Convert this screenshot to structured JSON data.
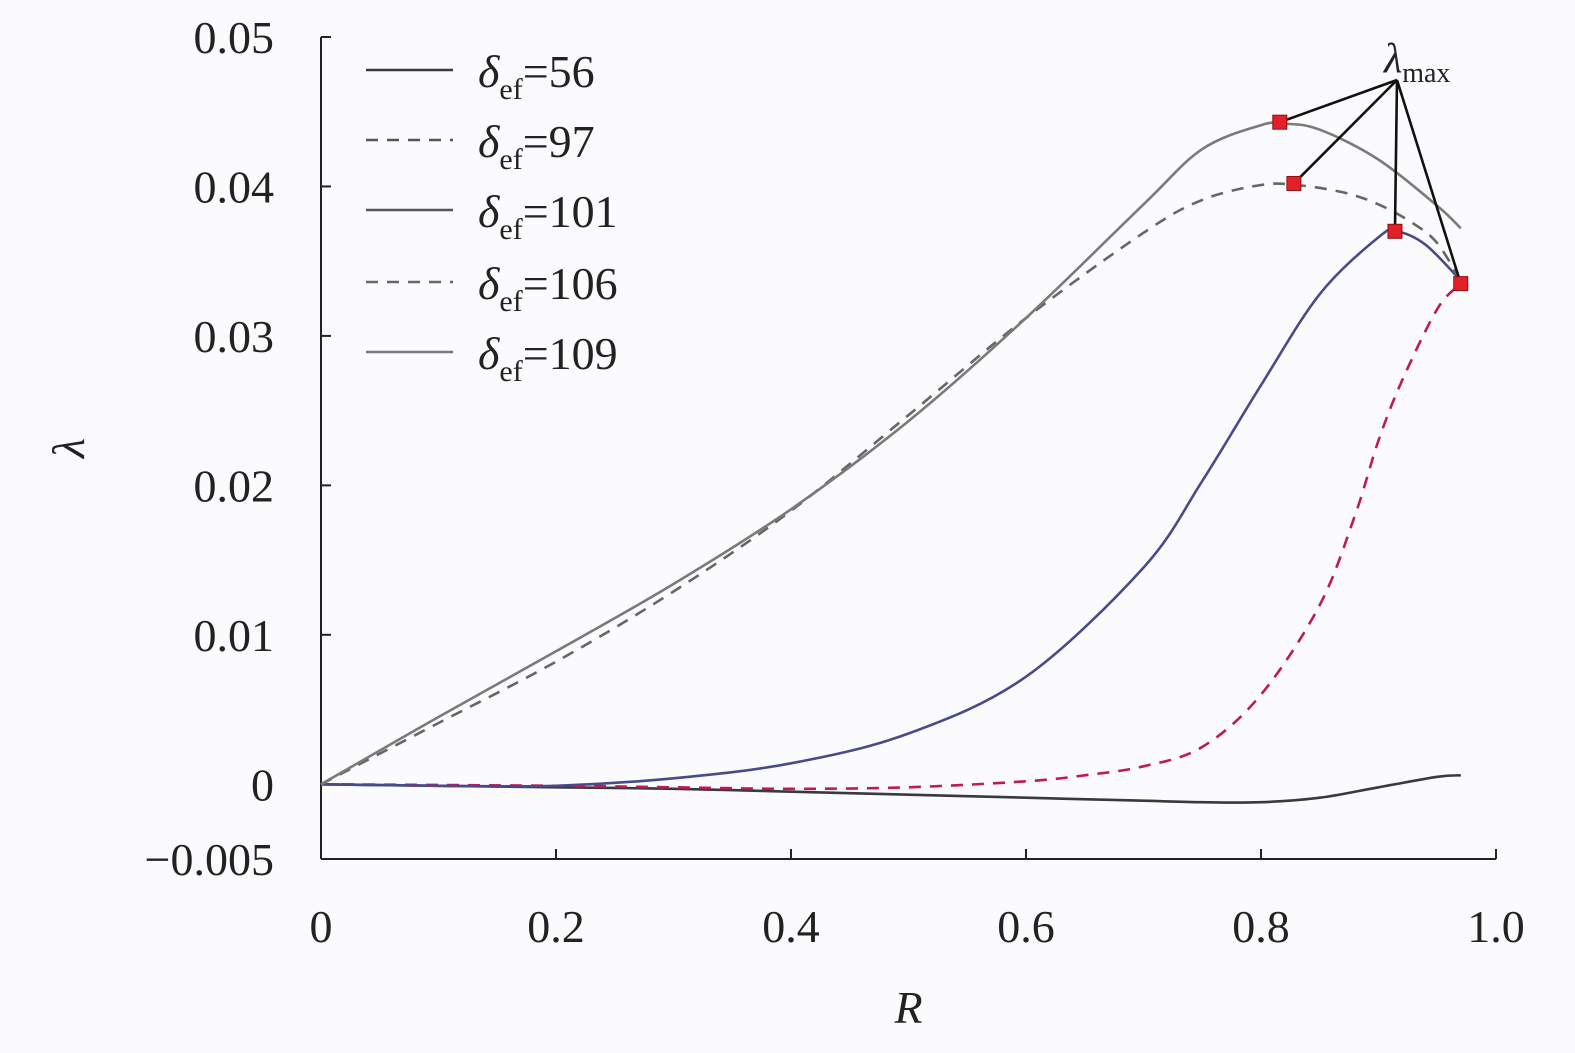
{
  "chart_data": {
    "type": "line",
    "xlabel": "R",
    "ylabel": "λ",
    "xlim": [
      0,
      1.0
    ],
    "ylim": [
      -0.005,
      0.05
    ],
    "x_ticks": [
      "0",
      "0.2",
      "0.4",
      "0.6",
      "0.8",
      "1.0"
    ],
    "y_ticks": [
      "−0.005",
      "0",
      "0.01",
      "0.02",
      "0.03",
      "0.04",
      "0.05"
    ],
    "legend_position": "top-left",
    "legend_symbol": "δ",
    "legend_subscript": "ef",
    "annotation": {
      "symbol": "λ",
      "subscript": "max"
    },
    "series": [
      {
        "name": "δef=56",
        "label_value": "=56",
        "style": "solid",
        "color": "#3a3a3a",
        "x": [
          0,
          0.1,
          0.2,
          0.3,
          0.4,
          0.5,
          0.6,
          0.7,
          0.75,
          0.8,
          0.85,
          0.9,
          0.95,
          0.97
        ],
        "y": [
          0,
          -0.0001,
          -0.0002,
          -0.0003,
          -0.0005,
          -0.0007,
          -0.0009,
          -0.0011,
          -0.0012,
          -0.0012,
          -0.0009,
          -0.0002,
          0.0005,
          0.0006
        ]
      },
      {
        "name": "δef=97",
        "label_value": "=97",
        "style": "dashed",
        "color": "#c0185a",
        "x": [
          0,
          0.2,
          0.3,
          0.4,
          0.5,
          0.6,
          0.65,
          0.7,
          0.75,
          0.8,
          0.85,
          0.88,
          0.9,
          0.92,
          0.95,
          0.97
        ],
        "y": [
          0,
          -0.0001,
          -0.0002,
          -0.0003,
          -0.0002,
          0.0002,
          0.0006,
          0.0012,
          0.0025,
          0.006,
          0.012,
          0.018,
          0.023,
          0.027,
          0.0318,
          0.0335
        ]
      },
      {
        "name": "δef=101",
        "label_value": "=101",
        "style": "solid",
        "color": "#4a4a8a",
        "x": [
          0,
          0.1,
          0.2,
          0.3,
          0.4,
          0.5,
          0.6,
          0.7,
          0.75,
          0.8,
          0.85,
          0.9,
          0.915,
          0.94,
          0.97
        ],
        "y": [
          0,
          -0.0001,
          -0.0001,
          0.0004,
          0.0014,
          0.0034,
          0.0072,
          0.0145,
          0.0203,
          0.0267,
          0.0328,
          0.0366,
          0.037,
          0.0361,
          0.0337
        ]
      },
      {
        "name": "δef=106",
        "label_value": "=106",
        "style": "dashed",
        "color": "#666666",
        "x": [
          0,
          0.1,
          0.2,
          0.3,
          0.4,
          0.5,
          0.6,
          0.7,
          0.75,
          0.8,
          0.83,
          0.87,
          0.9,
          0.93,
          0.95,
          0.97
        ],
        "y": [
          0,
          0.0041,
          0.0082,
          0.0129,
          0.0183,
          0.0247,
          0.0312,
          0.0369,
          0.0391,
          0.0401,
          0.0401,
          0.0396,
          0.0388,
          0.0375,
          0.0362,
          0.0337
        ]
      },
      {
        "name": "δef=109",
        "label_value": "=109",
        "style": "solid",
        "color": "#7a7a7a",
        "x": [
          0,
          0.1,
          0.2,
          0.3,
          0.4,
          0.5,
          0.6,
          0.7,
          0.75,
          0.8,
          0.82,
          0.85,
          0.9,
          0.95,
          0.97
        ],
        "y": [
          0,
          0.0045,
          0.0089,
          0.0134,
          0.0184,
          0.0243,
          0.0312,
          0.0388,
          0.0425,
          0.0441,
          0.0442,
          0.0438,
          0.0418,
          0.0387,
          0.0372
        ]
      }
    ],
    "max_points": [
      {
        "x": 0.816,
        "y": 0.0443
      },
      {
        "x": 0.828,
        "y": 0.0402
      },
      {
        "x": 0.914,
        "y": 0.037
      },
      {
        "x": 0.97,
        "y": 0.0335
      }
    ],
    "max_marker_color": "#e3202a"
  }
}
